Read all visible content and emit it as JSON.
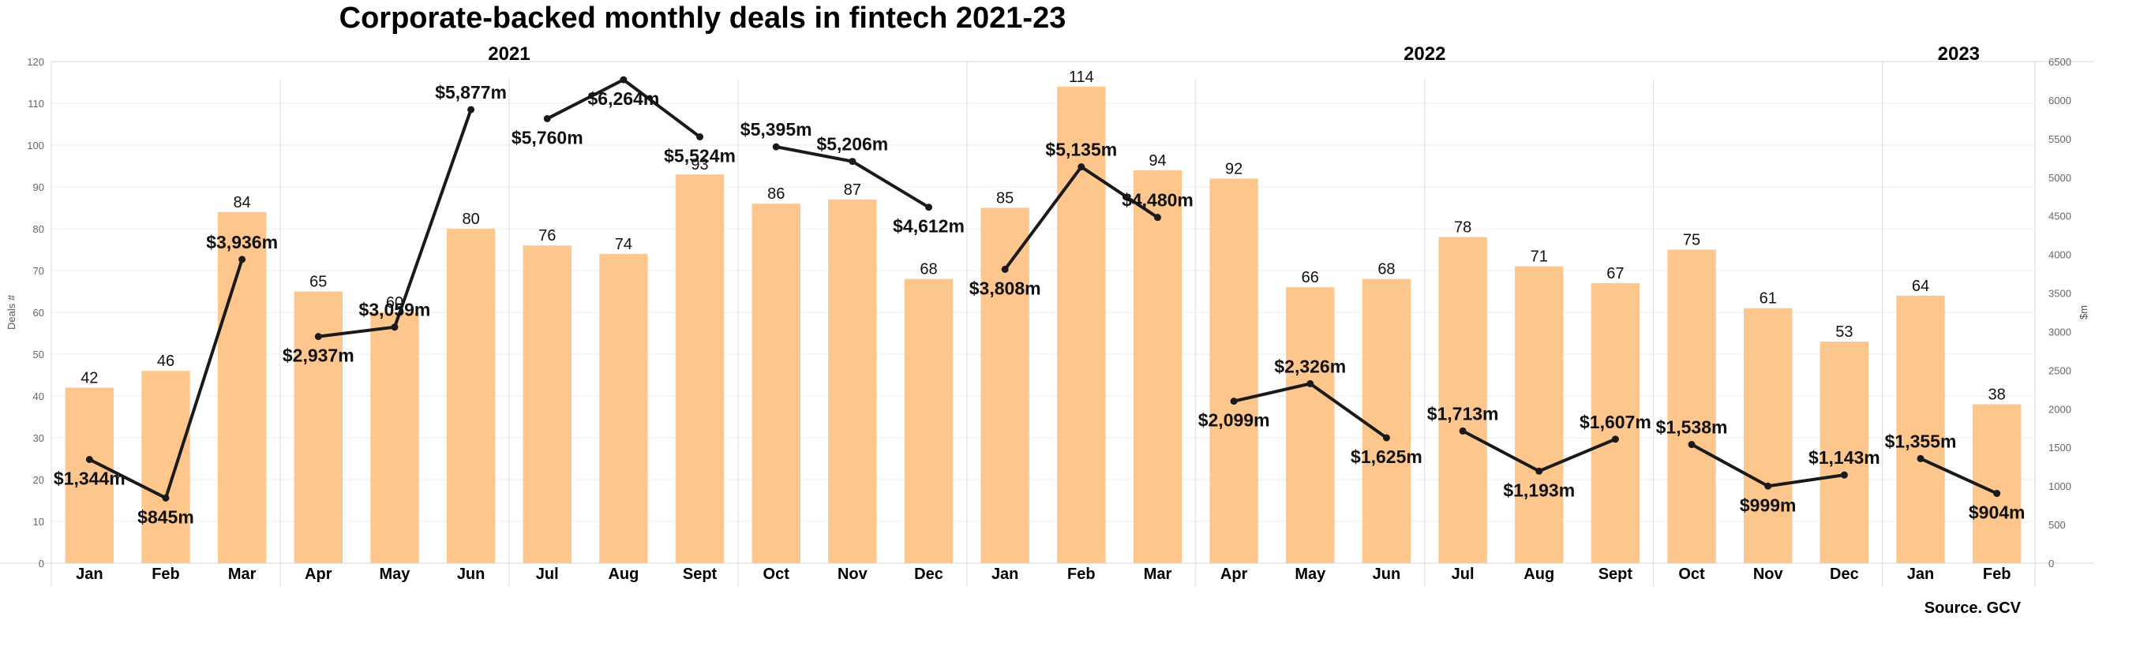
{
  "chart_data": {
    "type": "bar",
    "title": "Corporate-backed monthly deals in fintech 2021-23",
    "source": "Source. GCV",
    "ylabel": "Deals #",
    "y2label": "$m",
    "ylim": [
      0,
      120
    ],
    "y2lim": [
      0,
      6500
    ],
    "yticks": [
      "0",
      "10",
      "20",
      "30",
      "40",
      "50",
      "60",
      "70",
      "80",
      "90",
      "100",
      "110",
      "120"
    ],
    "y2ticks": [
      "0",
      "500",
      "1000",
      "1500",
      "2000",
      "2500",
      "3000",
      "3500",
      "4000",
      "4500",
      "5000",
      "5500",
      "6000",
      "6500"
    ],
    "grid": true,
    "years": [
      {
        "label": "2021",
        "first": 0,
        "last": 11
      },
      {
        "label": "2022",
        "first": 12,
        "last": 23
      },
      {
        "label": "2023",
        "first": 24,
        "last": 25
      }
    ],
    "categories": [
      "Jan",
      "Feb",
      "Mar",
      "Apr",
      "May",
      "Jun",
      "Jul",
      "Aug",
      "Sept",
      "Oct",
      "Nov",
      "Dec",
      "Jan",
      "Feb",
      "Mar",
      "Apr",
      "May",
      "Jun",
      "Jul",
      "Aug",
      "Sept",
      "Oct",
      "Nov",
      "Dec",
      "Jan",
      "Feb"
    ],
    "series": [
      {
        "kind": "bar",
        "axis": "left",
        "color": "#fdc68d",
        "values": [
          42,
          46,
          84,
          65,
          60,
          80,
          76,
          74,
          93,
          86,
          87,
          68,
          85,
          114,
          94,
          92,
          66,
          68,
          78,
          71,
          67,
          75,
          61,
          53,
          64,
          38
        ],
        "labels": [
          "42",
          "46",
          "84",
          "65",
          "60",
          "80",
          "76",
          "74",
          "93",
          "86",
          "87",
          "68",
          "85",
          "114",
          "94",
          "92",
          "66",
          "68",
          "78",
          "71",
          "67",
          "75",
          "61",
          "53",
          "64",
          "38"
        ]
      },
      {
        "kind": "line",
        "axis": "right",
        "color": "#1a1a1a",
        "values": [
          1344,
          845,
          3936,
          2937,
          3059,
          5877,
          5760,
          6264,
          5524,
          5395,
          5206,
          4612,
          3808,
          5135,
          4480,
          2099,
          2326,
          1625,
          1713,
          1193,
          1607,
          1538,
          999,
          1143,
          1355,
          904
        ],
        "labels": [
          "$1,344m",
          "$845m",
          "$3,936m",
          "$2,937m",
          "$3,059m",
          "$5,877m",
          "$5,760m",
          "$6,264m",
          "$5,524m",
          "$5,395m",
          "$5,206m",
          "$4,612m",
          "$3,808m",
          "$5,135m",
          "$4,480m",
          "$2,099m",
          "$2,326m",
          "$1,625m",
          "$1,713m",
          "$1,193m",
          "$1,607m",
          "$1,538m",
          "$999m",
          "$1,143m",
          "$1,355m",
          "$904m"
        ]
      }
    ]
  }
}
